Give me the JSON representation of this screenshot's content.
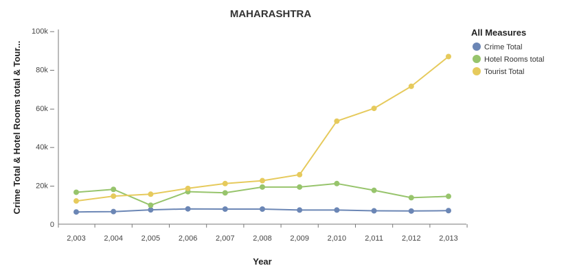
{
  "chart_data": {
    "type": "line",
    "title": "MAHARASHTRA",
    "xlabel": "Year",
    "ylabel": "Crime Total & Hotel Rooms total & Tour...",
    "x": [
      "2,003",
      "2,004",
      "2,005",
      "2,006",
      "2,007",
      "2,008",
      "2,009",
      "2,010",
      "2,011",
      "2,012",
      "2,013"
    ],
    "ylim": [
      0,
      100000
    ],
    "yticks": [
      0,
      20000,
      40000,
      60000,
      80000,
      100000
    ],
    "ytick_labels": [
      "0",
      "20k –",
      "40k –",
      "60k –",
      "80k –",
      "100k –"
    ],
    "grid": false,
    "legend": {
      "title": "All Measures",
      "position": "right"
    },
    "series": [
      {
        "name": "Crime Total",
        "color": "#6b86b5",
        "values": [
          6300,
          6500,
          7400,
          7900,
          7800,
          7800,
          7300,
          7300,
          6900,
          6800,
          7000
        ]
      },
      {
        "name": "Hotel Rooms total",
        "color": "#97c46c",
        "values": [
          16500,
          18000,
          9800,
          16800,
          16200,
          19200,
          19200,
          21000,
          17500,
          13700,
          14400
        ]
      },
      {
        "name": "Tourist Total",
        "color": "#e6ca5c",
        "values": [
          12000,
          14500,
          15500,
          18500,
          21000,
          22500,
          25600,
          53300,
          59900,
          71300,
          86700
        ]
      }
    ]
  }
}
